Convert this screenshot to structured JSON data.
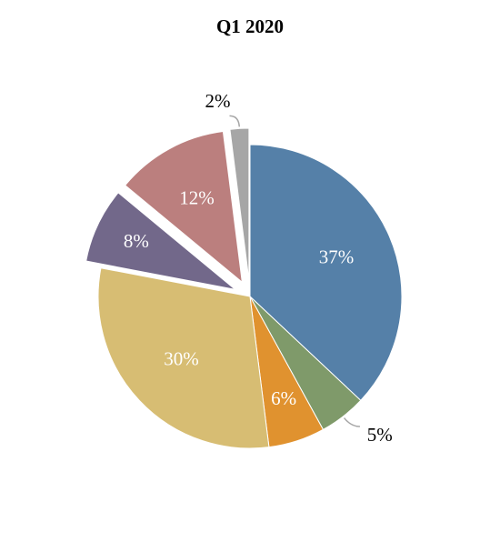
{
  "chart_data": {
    "type": "pie",
    "title": "Q1 2020",
    "values": [
      37,
      5,
      6,
      30,
      8,
      12,
      2
    ],
    "value_labels": [
      "37%",
      "5%",
      "6%",
      "30%",
      "8%",
      "12%",
      "2%"
    ],
    "colors": [
      "#5580a8",
      "#7f9a6a",
      "#e0922f",
      "#d7bd73",
      "#72688a",
      "#bb7f7e",
      "#a6a6a6"
    ],
    "exploded": [
      false,
      false,
      false,
      false,
      true,
      true,
      true
    ]
  }
}
